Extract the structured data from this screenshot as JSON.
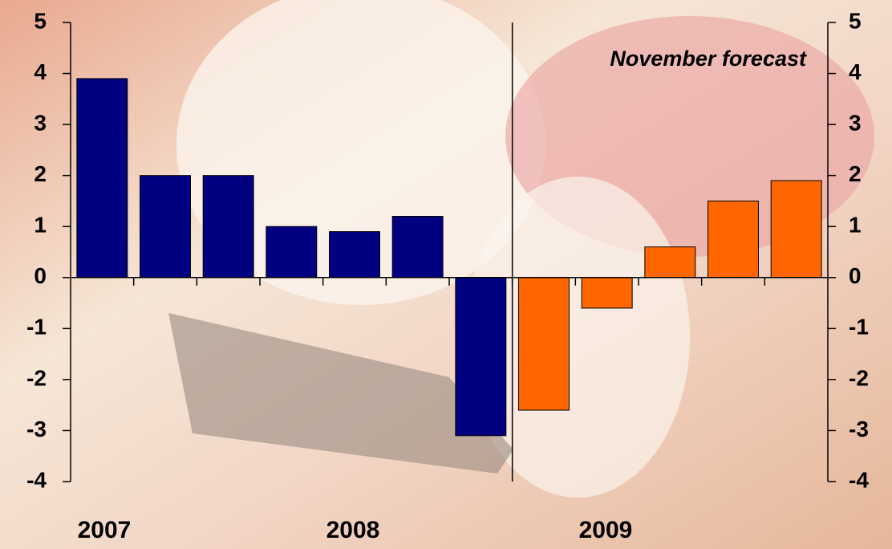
{
  "chart_data": {
    "type": "bar",
    "categories": [
      null,
      null,
      null,
      null,
      null,
      null,
      null,
      null,
      null,
      null,
      null,
      null
    ],
    "values": [
      3.9,
      2.0,
      2.0,
      1.0,
      0.9,
      1.2,
      -3.1,
      -2.6,
      -0.6,
      0.6,
      1.5,
      1.9
    ],
    "colors": [
      "#000080",
      "#000080",
      "#000080",
      "#000080",
      "#000080",
      "#000080",
      "#000080",
      "#ff6600",
      "#ff6600",
      "#ff6600",
      "#ff6600",
      "#ff6600"
    ],
    "ylim": [
      -4,
      5
    ],
    "yticks": [
      -4,
      -3,
      -2,
      -1,
      0,
      1,
      2,
      3,
      4,
      5
    ],
    "y2lim": [
      -4,
      5
    ],
    "y2ticks": [
      -4,
      -3,
      -2,
      -1,
      0,
      1,
      2,
      3,
      4,
      5
    ],
    "year_labels": [
      "2007",
      "2008",
      "2009"
    ],
    "annotation": "November forecast",
    "grid": false
  }
}
